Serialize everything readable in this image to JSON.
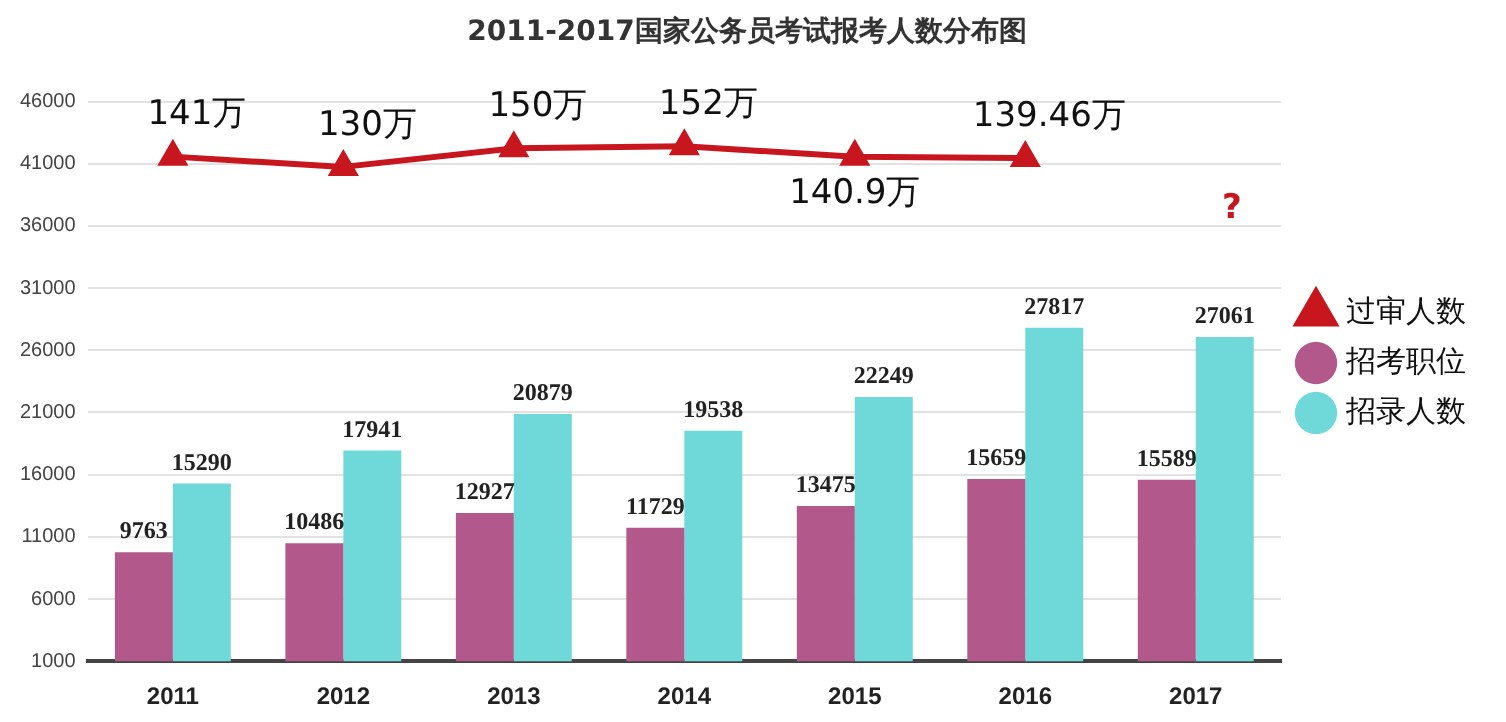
{
  "chart_data": {
    "type": "bar",
    "title": "2011-2017国家公务员考试报考人数分布图",
    "categories": [
      "2011",
      "2012",
      "2013",
      "2014",
      "2015",
      "2016",
      "2017"
    ],
    "series": [
      {
        "name": "招考职位",
        "color": "#b3588a",
        "values": [
          9763,
          10486,
          12927,
          11729,
          13475,
          15659,
          15589
        ]
      },
      {
        "name": "招录人数",
        "color": "#6fd9d9",
        "values": [
          15290,
          17941,
          20879,
          19538,
          22249,
          27817,
          27061
        ]
      },
      {
        "name": "过审人数",
        "type": "line",
        "axis": "y2",
        "color": "#c8161e",
        "marker": "triangle",
        "line_style": "solid",
        "values": [
          141,
          130,
          150,
          152,
          140.9,
          139.46,
          null
        ],
        "value_labels": [
          "141万",
          "130万",
          "150万",
          "152万",
          "140.9万",
          "139.46万",
          null
        ]
      }
    ],
    "data_labels": true,
    "ylim": [
      1000,
      46000
    ],
    "yticks": [
      1000,
      6000,
      11000,
      16000,
      21000,
      26000,
      31000,
      36000,
      41000,
      46000
    ],
    "annotations": [
      "?"
    ],
    "grid": "y",
    "legend": "right"
  }
}
